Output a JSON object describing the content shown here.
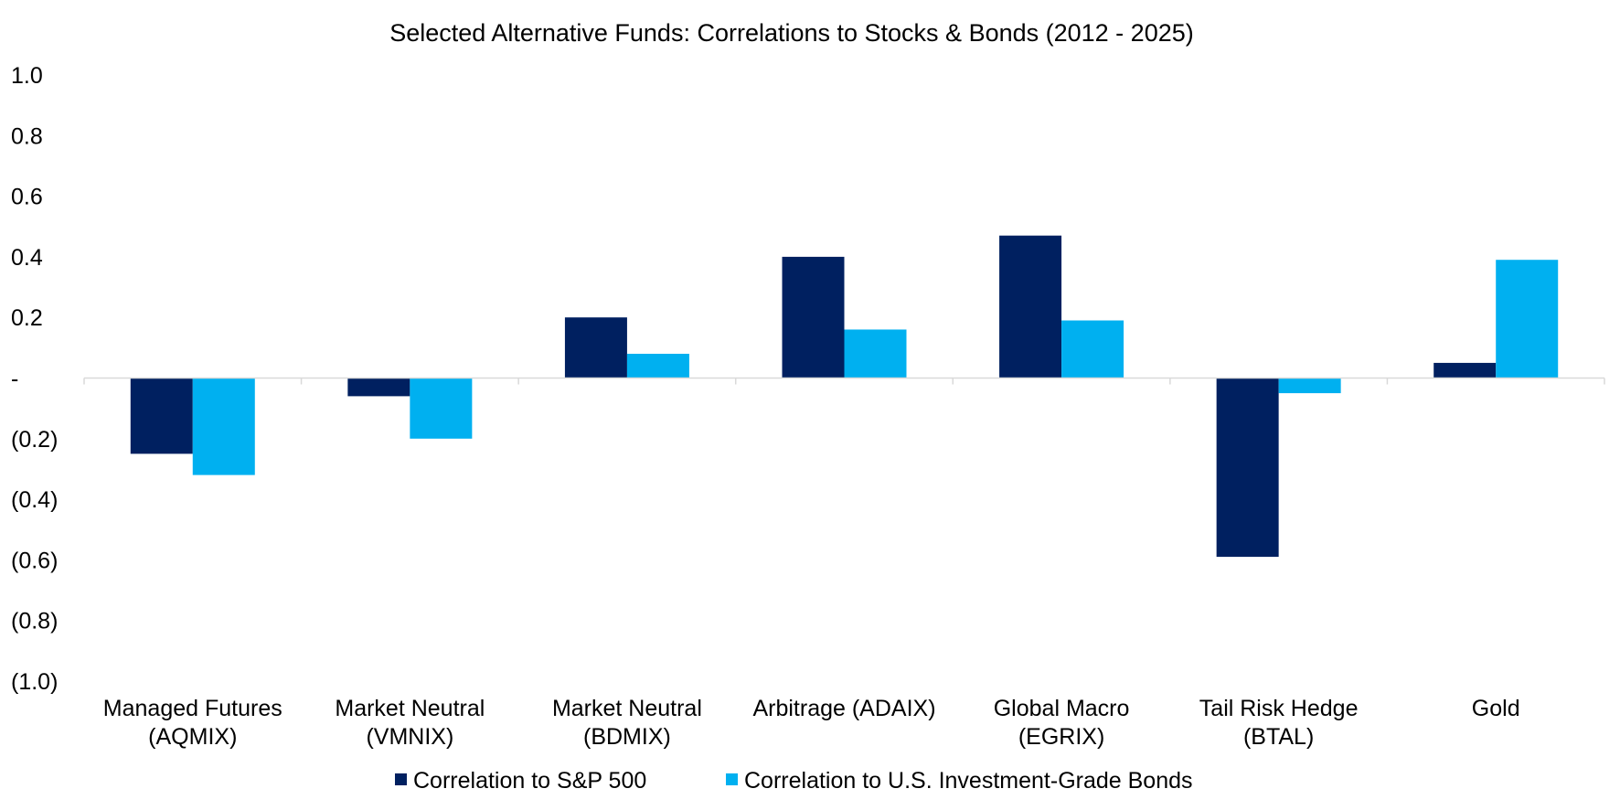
{
  "chart_data": {
    "type": "bar",
    "title": "Selected Alternative Funds: Correlations to Stocks & Bonds (2012 - 2025)",
    "xlabel": "",
    "ylabel": "",
    "ylim": [
      -1.0,
      1.0
    ],
    "grid": false,
    "legend_position": "bottom",
    "categories": [
      [
        "Managed Futures",
        "(AQMIX)"
      ],
      [
        "Market Neutral",
        "(VMNIX)"
      ],
      [
        "Market Neutral",
        "(BDMIX)"
      ],
      [
        "Arbitrage (ADAIX)"
      ],
      [
        "Global Macro",
        "(EGRIX)"
      ],
      [
        "Tail Risk Hedge",
        "(BTAL)"
      ],
      [
        "Gold"
      ]
    ],
    "y_ticks": [
      {
        "value": 1.0,
        "label": "1.0"
      },
      {
        "value": 0.8,
        "label": "0.8"
      },
      {
        "value": 0.6,
        "label": "0.6"
      },
      {
        "value": 0.4,
        "label": "0.4"
      },
      {
        "value": 0.2,
        "label": "0.2"
      },
      {
        "value": 0.0,
        "label": "-"
      },
      {
        "value": -0.2,
        "label": "(0.2)"
      },
      {
        "value": -0.4,
        "label": "(0.4)"
      },
      {
        "value": -0.6,
        "label": "(0.6)"
      },
      {
        "value": -0.8,
        "label": "(0.8)"
      },
      {
        "value": -1.0,
        "label": "(1.0)"
      }
    ],
    "series": [
      {
        "name": "Correlation to S&P 500",
        "color": "#002060",
        "values": [
          -0.25,
          -0.06,
          0.2,
          0.4,
          0.47,
          -0.59,
          0.05
        ]
      },
      {
        "name": "Correlation to U.S. Investment-Grade Bonds",
        "color": "#00B0F0",
        "values": [
          -0.32,
          -0.2,
          0.08,
          0.16,
          0.19,
          -0.05,
          0.39
        ]
      }
    ]
  }
}
